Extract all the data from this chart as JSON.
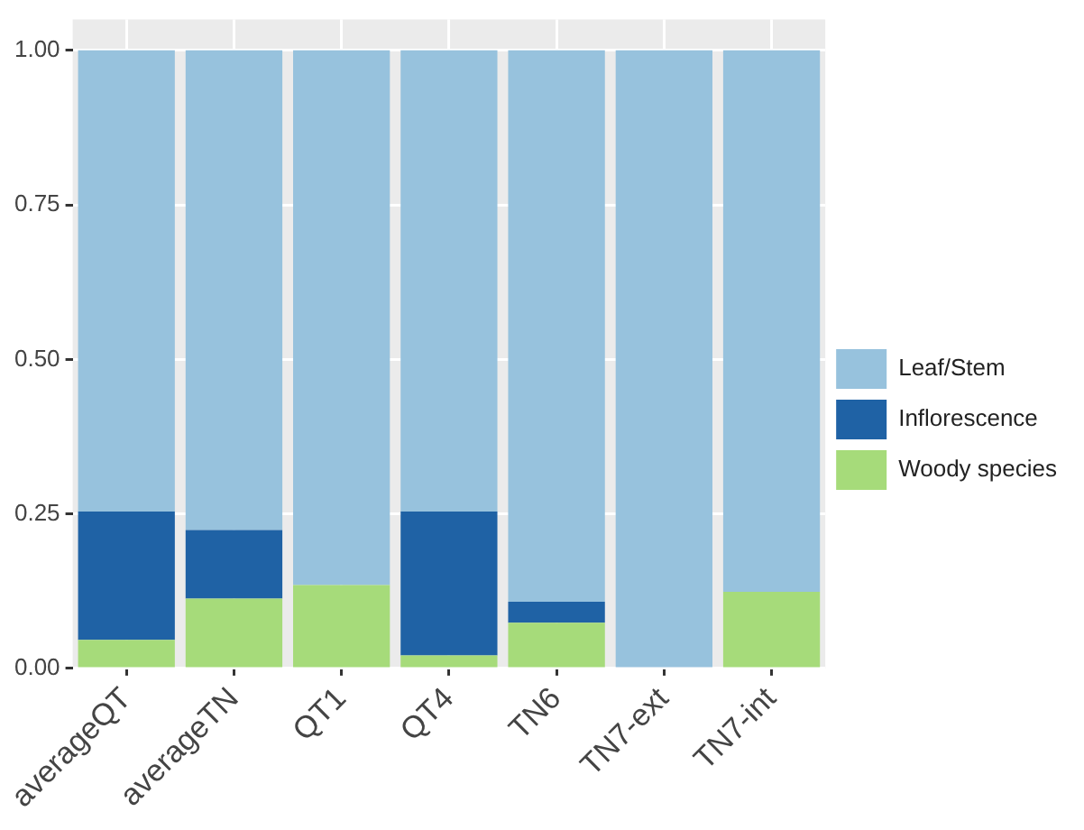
{
  "chart_data": {
    "type": "bar",
    "stacked": true,
    "categories": [
      "averageQT",
      "averageTN",
      "QT1",
      "QT4",
      "TN6",
      "TN7-ext",
      "TN7-int"
    ],
    "series": [
      {
        "name": "Woody species",
        "color": "#a6db7a",
        "values": [
          0.046,
          0.113,
          0.135,
          0.021,
          0.074,
          0,
          0.124
        ]
      },
      {
        "name": "Inflorescence",
        "color": "#1f62a5",
        "values": [
          0.208,
          0.111,
          0,
          0.233,
          0.034,
          0,
          0
        ]
      },
      {
        "name": "Leaf/Stem",
        "color": "#97c2dd",
        "values": [
          0.746,
          0.776,
          0.865,
          0.746,
          0.892,
          1,
          0.876
        ]
      }
    ],
    "ylim": [
      0,
      1.05
    ],
    "yticks": [
      {
        "value": 0,
        "label": "0.00"
      },
      {
        "value": 0.25,
        "label": "0.25"
      },
      {
        "value": 0.5,
        "label": "0.50"
      },
      {
        "value": 0.75,
        "label": "0.75"
      },
      {
        "value": 1,
        "label": "1.00"
      }
    ],
    "grid": true,
    "legend": "right"
  }
}
